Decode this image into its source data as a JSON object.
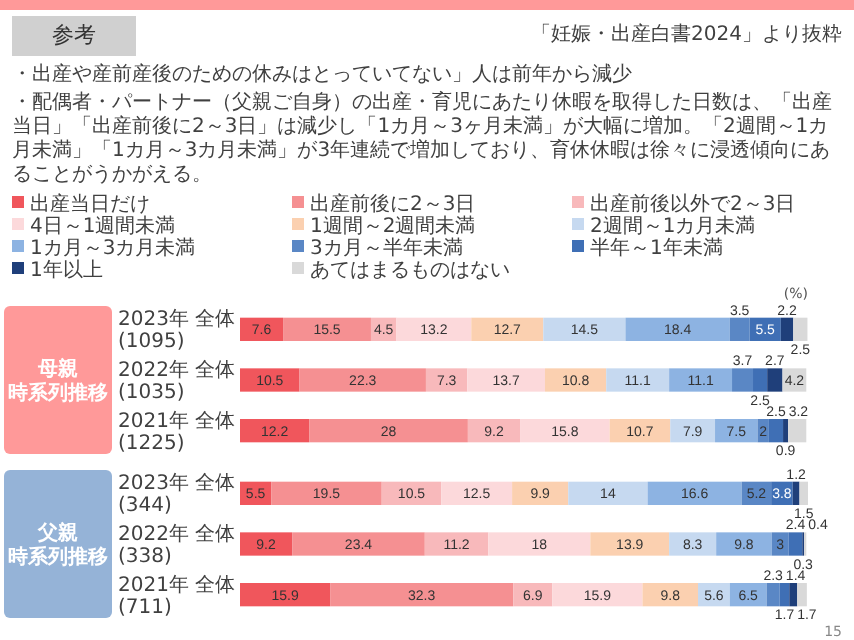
{
  "chart_data": {
    "type": "bar",
    "orientation": "horizontal",
    "stacked": true,
    "data_labels": true,
    "legend": "top",
    "title": "参考",
    "subtitle": "「妊娠・出産白書2024」より抜粋",
    "annotations": [
      "・出産や産前産後のための休みはとっていてない」人は前年から減少",
      "・配偶者・パートナー（父親ご自身）の出産・育児にあたり休暇を取得した日数は、「出産当日」「出産前後に2～3日」は減少し「1カ月～3ヶ月未満」が大幅に増加。「2週間～1カ月未満」「1カ月～3カ月未満」が3年連続で増加しており、育休休暇は徐々に浸透傾向にあることがうかがえる。",
      "(%)",
      "母親",
      "時系列推移",
      "父親",
      "時系列推移",
      "15"
    ],
    "categories": [
      "2023年 全体 (1095)",
      "2022年 全体 (1035)",
      "2021年 全体 (1225)",
      "2023年 全体 (344)",
      "2022年 全体 (338)",
      "2021年 全体 (711)"
    ],
    "series": [
      {
        "name": "出産当日だけ",
        "color": "#f0565c",
        "values": [
          7.6,
          10.5,
          12.2,
          5.5,
          9.2,
          15.9
        ]
      },
      {
        "name": "出産前後に2～3日",
        "color": "#f59092",
        "values": [
          15.5,
          22.3,
          28.0,
          19.5,
          23.4,
          32.3
        ]
      },
      {
        "name": "出産前後以外で2～3日",
        "color": "#f8b9bb",
        "values": [
          4.5,
          7.3,
          9.2,
          10.5,
          11.2,
          6.9
        ]
      },
      {
        "name": "4日～1週間未満",
        "color": "#fcd9db",
        "values": [
          13.2,
          13.7,
          15.8,
          12.5,
          18.0,
          15.9
        ]
      },
      {
        "name": "1週間～2週間未満",
        "color": "#fbd0b0",
        "values": [
          12.7,
          10.8,
          10.7,
          9.9,
          13.9,
          9.8
        ]
      },
      {
        "name": "2週間～1カ月未満",
        "color": "#c6d9f0",
        "values": [
          14.5,
          11.1,
          7.9,
          14.0,
          8.3,
          5.6
        ]
      },
      {
        "name": "1カ月～3カ月未満",
        "color": "#8db3e2",
        "values": [
          18.4,
          11.1,
          7.5,
          16.6,
          9.8,
          6.5
        ]
      },
      {
        "name": "3カ月～半年未満",
        "color": "#5a87c5",
        "values": [
          3.5,
          3.7,
          2.0,
          5.2,
          3.0,
          2.3
        ]
      },
      {
        "name": "半年～1年未満",
        "color": "#3f6fb5",
        "values": [
          5.5,
          2.5,
          2.5,
          3.8,
          2.4,
          1.7
        ]
      },
      {
        "name": "1年以上",
        "color": "#1f3f7a",
        "values": [
          2.2,
          2.7,
          0.9,
          1.2,
          0.3,
          1.4
        ]
      },
      {
        "name": "あてはまるものはない",
        "color": "#d9d9d9",
        "values": [
          2.5,
          4.2,
          3.2,
          1.5,
          0.4,
          1.7
        ]
      }
    ]
  }
}
